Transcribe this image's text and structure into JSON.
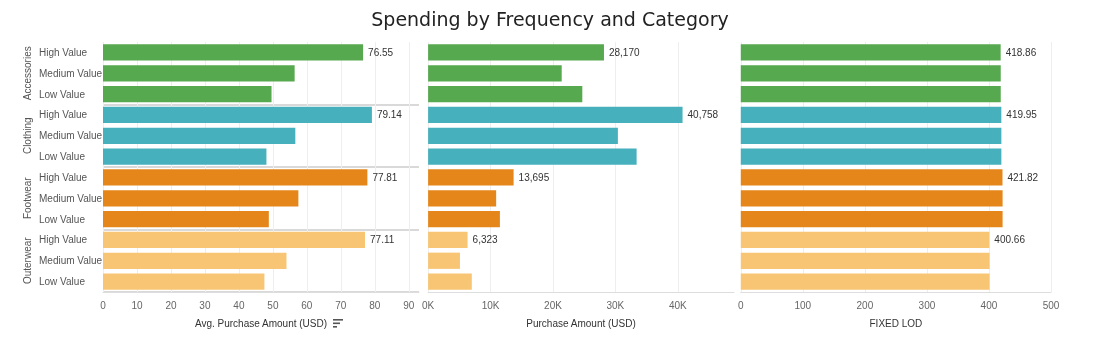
{
  "chart_data": [
    {
      "type": "bar",
      "orientation": "horizontal",
      "xlabel": "Avg. Purchase Amount (USD)",
      "categories": [
        "High Value",
        "Medium Value",
        "Low Value",
        "High Value",
        "Medium Value",
        "Low Value",
        "High Value",
        "Medium Value",
        "Low Value",
        "High Value",
        "Medium Value",
        "Low Value"
      ],
      "values": [
        76.55,
        56.4,
        49.6,
        79.14,
        56.6,
        48.1,
        77.81,
        57.5,
        48.8,
        77.11,
        54.0,
        47.5
      ],
      "value_labels": [
        "76.55",
        null,
        null,
        "79.14",
        null,
        null,
        "77.81",
        null,
        null,
        "77.11",
        null,
        null
      ],
      "colors": [
        "#57a94f",
        "#57a94f",
        "#57a94f",
        "#47b0bd",
        "#47b0bd",
        "#47b0bd",
        "#e5861a",
        "#e5861a",
        "#e5861a",
        "#f8c574",
        "#f8c574",
        "#f8c574"
      ],
      "annotations": [
        "Accessories",
        "Clothing",
        "Footwear",
        "Outerwear"
      ],
      "xlim": [
        0,
        93
      ],
      "xticks": [
        0,
        10,
        20,
        30,
        40,
        50,
        60,
        70,
        80,
        90
      ],
      "grid": "x"
    },
    {
      "type": "bar",
      "orientation": "horizontal",
      "title": "Spending by Frequency and Category",
      "xlabel": "Purchase Amount (USD)",
      "categories": [
        null,
        null,
        null,
        null,
        null,
        null,
        null,
        null,
        null,
        null,
        null,
        null
      ],
      "values": [
        28170,
        21400,
        24700,
        40758,
        30400,
        33400,
        13695,
        10900,
        11500,
        6323,
        5100,
        7000
      ],
      "value_labels": [
        "28,170",
        null,
        null,
        "40,758",
        null,
        null,
        "13,695",
        null,
        null,
        "6,323",
        null,
        null
      ],
      "colors": [
        "#57a94f",
        "#57a94f",
        "#57a94f",
        "#47b0bd",
        "#47b0bd",
        "#47b0bd",
        "#e5861a",
        "#e5861a",
        "#e5861a",
        "#f8c574",
        "#f8c574",
        "#f8c574"
      ],
      "xlim": [
        0,
        49000
      ],
      "xticks": [
        {
          "value": 0,
          "label": "0K"
        },
        {
          "value": 10000,
          "label": "10K"
        },
        {
          "value": 20000,
          "label": "20K"
        },
        {
          "value": 30000,
          "label": "30K"
        },
        {
          "value": 40000,
          "label": "40K"
        }
      ],
      "grid": "x",
      "tick_labels": "x"
    },
    {
      "type": "bar",
      "orientation": "horizontal",
      "xlabel": "FIXED LOD",
      "categories": [
        null,
        null,
        null,
        null,
        null,
        null,
        null,
        null,
        null,
        null,
        null,
        null
      ],
      "values": [
        418.86,
        419,
        419,
        419.95,
        420,
        420,
        421.82,
        422,
        422,
        400.66,
        401,
        401
      ],
      "value_labels": [
        "418.86",
        null,
        null,
        "419.95",
        null,
        null,
        "421.82",
        null,
        null,
        "400.66",
        null,
        null
      ],
      "colors": [
        "#57a94f",
        "#57a94f",
        "#57a94f",
        "#47b0bd",
        "#47b0bd",
        "#47b0bd",
        "#e5861a",
        "#e5861a",
        "#e5861a",
        "#f8c574",
        "#f8c574",
        "#f8c574"
      ],
      "xlim": [
        0,
        500
      ],
      "xticks": [
        0,
        100,
        200,
        300,
        400,
        500
      ],
      "grid": "x",
      "tick_labels": "x"
    }
  ]
}
